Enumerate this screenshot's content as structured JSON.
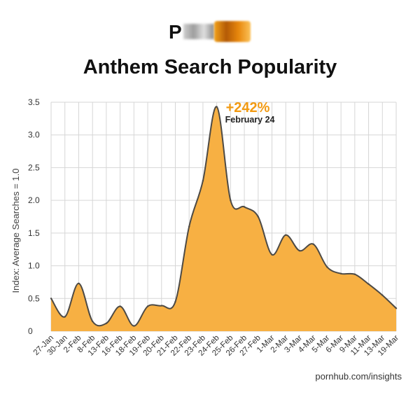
{
  "logo": {
    "visible_letter": "P"
  },
  "chart_data": {
    "type": "area",
    "title": "Anthem Search Popularity",
    "xlabel": "",
    "ylabel": "Index: Average Searches = 1.0",
    "ylim": [
      0,
      3.5
    ],
    "yticks": [
      "0",
      "0.5",
      "1.0",
      "1.5",
      "2.0",
      "2.5",
      "3.0",
      "3.5"
    ],
    "categories": [
      "27-Jan",
      "30-Jan",
      "2-Feb",
      "8-Feb",
      "13-Feb",
      "16-Feb",
      "18-Feb",
      "19-Feb",
      "20-Feb",
      "21-Feb",
      "22-Feb",
      "23-Feb",
      "24-Feb",
      "25-Feb",
      "26-Feb",
      "27-Feb",
      "1-Mar",
      "2-Mar",
      "3-Mar",
      "4-Mar",
      "5-Mar",
      "6-Mar",
      "9-Mar",
      "11-Mar",
      "13-Mar",
      "19-Mar"
    ],
    "values": [
      0.5,
      0.22,
      0.73,
      0.15,
      0.12,
      0.38,
      0.08,
      0.38,
      0.39,
      0.45,
      1.6,
      2.3,
      3.43,
      2.0,
      1.9,
      1.75,
      1.17,
      1.47,
      1.23,
      1.33,
      0.98,
      0.88,
      0.87,
      0.72,
      0.55,
      0.35
    ],
    "colors": {
      "fill": "#f7b043",
      "line": "#4d4a45",
      "grid": "#d6d6d6",
      "accent": "#f29a12"
    },
    "grid": true,
    "annotation": {
      "value": "+242%",
      "label": "February 24",
      "category_index": 12
    }
  },
  "footer": {
    "credit": "pornhub.com/insights"
  }
}
